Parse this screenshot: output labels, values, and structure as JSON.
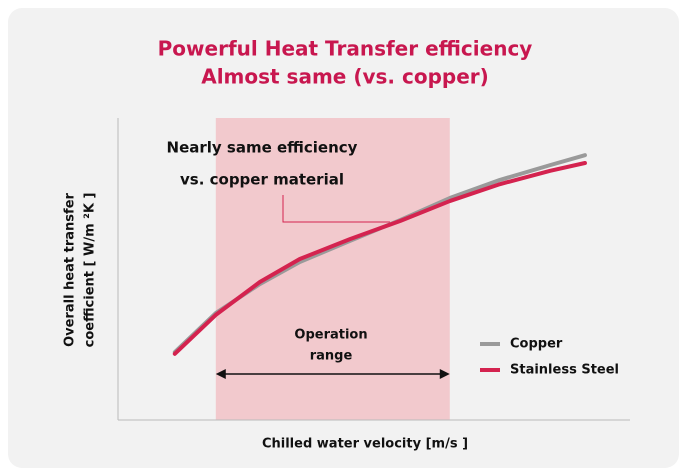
{
  "chart_data": {
    "type": "line",
    "title": "Powerful Heat Transfer efficiency",
    "subtitle": "Almost same (vs. copper)",
    "x_label": "Chilled water velocity [m/s ]",
    "y_label": [
      "Overall heat transfer",
      "coefficient [ W/m ²K ]"
    ],
    "annotations": [
      "Nearly same efficiency",
      "vs. copper material"
    ],
    "range_label": [
      "Operation",
      "range"
    ],
    "range": [
      19.1,
      64.8
    ],
    "range_color": "#f2c9cd",
    "xlim": [
      0,
      100
    ],
    "ylim": [
      0,
      100
    ],
    "legend": "right",
    "series": [
      {
        "name": "Copper",
        "color": "#9a9a9a",
        "x": [
          11.1,
          19.1,
          27.7,
          35.5,
          45.3,
          55.1,
          64.8,
          74.6,
          84.4,
          91.2
        ],
        "values": [
          22.5,
          35.4,
          45.0,
          52.3,
          59.3,
          66.2,
          73.5,
          79.5,
          84.4,
          87.7
        ]
      },
      {
        "name": "Stainless Steel",
        "color": "#d4234f",
        "x": [
          11.1,
          19.1,
          27.7,
          35.5,
          45.3,
          55.1,
          64.8,
          74.6,
          84.4,
          91.2
        ],
        "values": [
          21.9,
          34.8,
          45.7,
          53.3,
          59.9,
          65.9,
          72.5,
          78.1,
          82.5,
          85.1
        ]
      }
    ]
  }
}
